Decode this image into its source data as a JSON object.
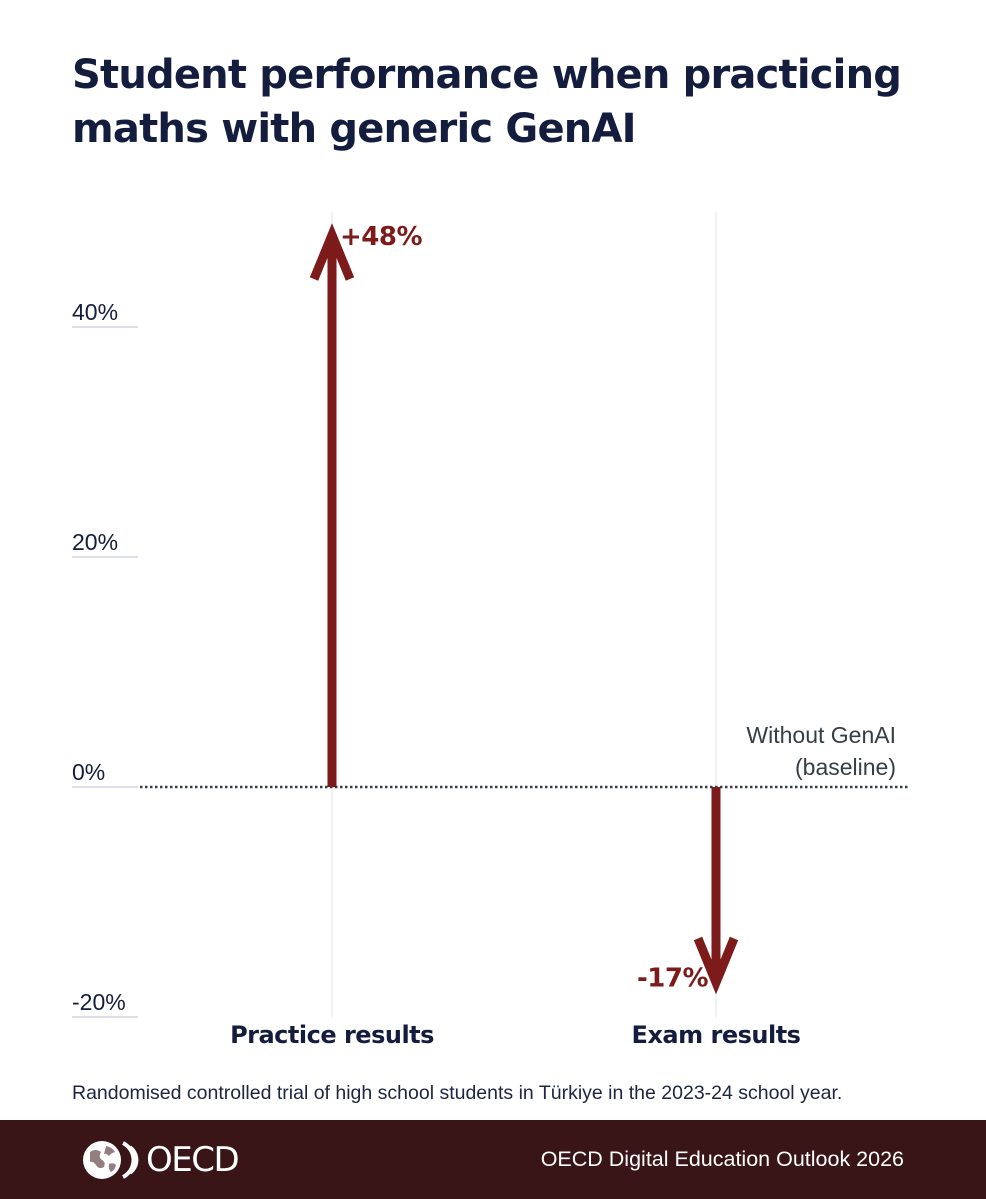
{
  "chart_data": {
    "type": "arrow",
    "title": "Student performance when practicing maths with generic GenAI",
    "categories": [
      "Practice results",
      "Exam results"
    ],
    "values": [
      48,
      -17
    ],
    "value_labels": [
      "+48%",
      "-17%"
    ],
    "ylim": [
      -20,
      48
    ],
    "yticks": [
      40,
      20,
      0,
      -20
    ],
    "ytick_labels": [
      "40%",
      "20%",
      "0%",
      "-20%"
    ],
    "baseline_label": [
      "Without GenAI",
      "(baseline)"
    ],
    "colors": {
      "arrow": "#7d1a1a",
      "text": "#141d3d",
      "baseline": "#333e45"
    }
  },
  "caption": "Randomised controlled trial of high school students in Türkiye in the 2023-24 school year.",
  "footer": {
    "logo_text": "OECD",
    "publication": "OECD Digital Education Outlook 2026",
    "background": "#3a1518",
    "logo_icon": "oecd-globe-icon"
  }
}
